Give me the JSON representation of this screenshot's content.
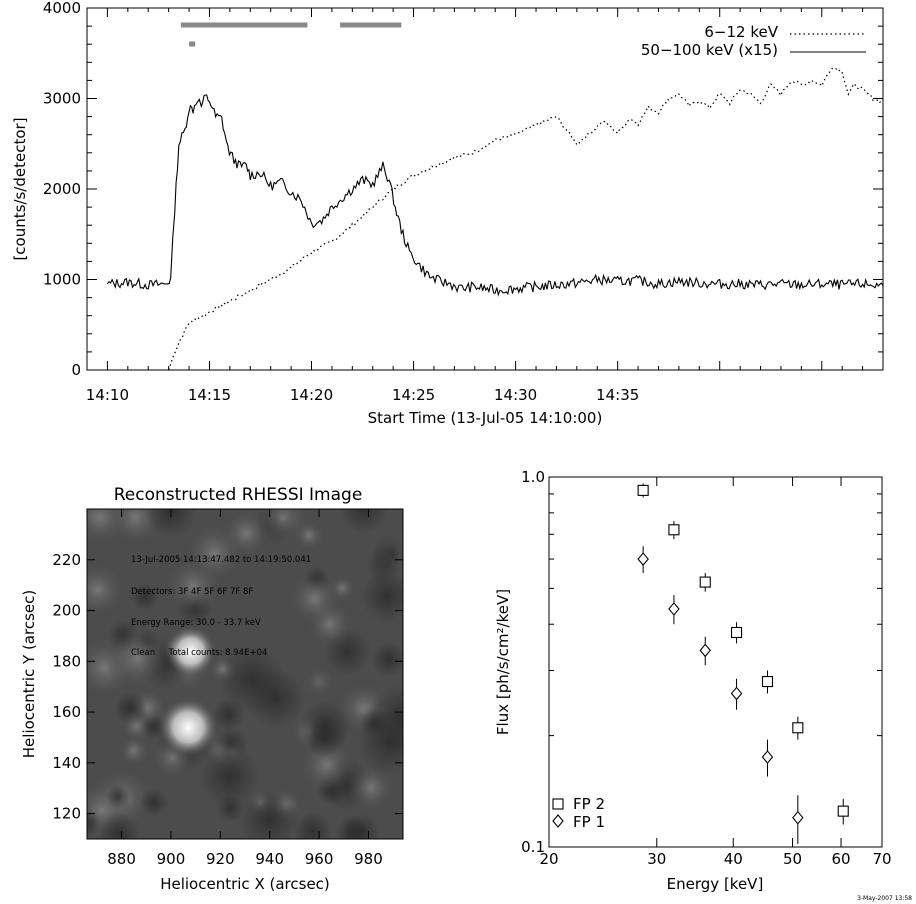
{
  "chart_data": [
    {
      "type": "line",
      "xlabel": "Start Time (13-Jul-05 14:10:00)",
      "ylabel": "[counts/s/detector]",
      "xlim": [
        -1,
        38
      ],
      "ylim": [
        0,
        4000
      ],
      "x_ticks": [
        0,
        5,
        10,
        15,
        20,
        25,
        30,
        35
      ],
      "x_tick_labels": [
        "14:10",
        "14:15",
        "14:20",
        "14:25",
        "14:30",
        "14:35"
      ],
      "x_tick_label_positions": [
        0,
        5,
        10,
        15,
        20,
        25
      ],
      "y_ticks": [
        0,
        1000,
        2000,
        3000,
        4000
      ],
      "y_tick_labels": [
        "0",
        "1000",
        "2000",
        "3000",
        "4000"
      ],
      "legend_position": "top-right",
      "series": [
        {
          "name": "6−12 keV",
          "style": "dotted",
          "x": [
            3.0,
            3.3,
            3.6,
            4.0,
            4.5,
            5.0,
            6.0,
            7.0,
            8.0,
            9.0,
            10.0,
            11.0,
            12.0,
            13.0,
            14.0,
            15.0,
            16.0,
            17.0,
            18.0,
            19.0,
            20.0,
            21.0,
            22.0,
            23.0,
            23.6,
            24.3,
            25.0,
            25.6,
            26.0,
            26.5,
            27.0,
            27.5,
            28.0,
            28.5,
            29.0,
            29.5,
            30.0,
            30.5,
            31.0,
            31.5,
            32.0,
            32.5,
            33.0,
            33.5,
            34.0,
            34.5,
            35.0,
            35.5,
            36.0,
            36.3,
            36.6,
            37.0,
            37.5,
            38.0
          ],
          "values": [
            0,
            200,
            350,
            520,
            580,
            640,
            760,
            880,
            1000,
            1130,
            1300,
            1420,
            1600,
            1800,
            2000,
            2150,
            2250,
            2350,
            2410,
            2540,
            2600,
            2710,
            2800,
            2500,
            2610,
            2750,
            2620,
            2780,
            2720,
            2900,
            2850,
            3000,
            3050,
            2920,
            2980,
            2900,
            3050,
            2950,
            3100,
            3050,
            2950,
            3150,
            3050,
            3200,
            3150,
            3200,
            3150,
            3350,
            3300,
            3050,
            3150,
            3100,
            3000,
            2950
          ]
        },
        {
          "name": "50−100 keV (x15)",
          "style": "solid",
          "x": [
            0.0,
            1.0,
            2.0,
            2.8,
            3.1,
            3.3,
            3.5,
            3.8,
            4.0,
            4.2,
            4.4,
            4.6,
            4.8,
            5.0,
            5.3,
            5.6,
            5.9,
            6.2,
            6.5,
            6.8,
            7.0,
            7.5,
            8.0,
            8.5,
            9.0,
            9.5,
            10.0,
            10.5,
            11.0,
            11.5,
            12.0,
            12.5,
            13.0,
            13.5,
            13.8,
            14.1,
            14.4,
            14.8,
            15.3,
            15.8,
            16.3,
            16.8,
            17.3,
            18.0,
            19.0,
            20.0,
            21.0,
            22.0,
            23.0,
            24.0,
            25.0,
            26.0,
            27.0,
            28.0,
            29.0,
            30.0,
            31.0,
            32.0,
            33.0,
            34.0,
            35.0,
            36.0,
            37.0,
            38.0
          ],
          "values": [
            950,
            970,
            940,
            950,
            1000,
            1800,
            2500,
            2650,
            2900,
            2880,
            3000,
            2920,
            3020,
            2980,
            2800,
            2780,
            2450,
            2320,
            2250,
            2260,
            2150,
            2180,
            2030,
            2080,
            1970,
            1880,
            1620,
            1650,
            1800,
            1900,
            2000,
            2100,
            2050,
            2250,
            2100,
            1800,
            1550,
            1300,
            1150,
            1030,
            980,
            950,
            900,
            920,
            880,
            900,
            920,
            940,
            960,
            1000,
            980,
            990,
            950,
            980,
            960,
            950,
            950,
            940,
            950,
            940,
            950,
            940,
            950,
            930
          ]
        }
      ],
      "annotation_bars_minutes": [
        [
          3.6,
          9.8
        ],
        [
          11.4,
          14.4
        ],
        [
          4.0,
          4.3
        ]
      ]
    },
    {
      "type": "heatmap",
      "title": "Reconstructed RHESSI Image",
      "xlabel": "Heliocentric X (arcsec)",
      "ylabel": "Heliocentric Y (arcsec)",
      "xlim": [
        866,
        994
      ],
      "ylim": [
        110,
        240
      ],
      "x_ticks": [
        880,
        900,
        920,
        940,
        960,
        980
      ],
      "y_ticks": [
        120,
        140,
        160,
        180,
        200,
        220
      ],
      "sources": [
        {
          "x": 908,
          "y": 184,
          "intensity": 0.75
        },
        {
          "x": 907,
          "y": 154,
          "intensity": 1.0
        },
        {
          "x": 960,
          "y": 172,
          "intensity": 0.25
        }
      ],
      "annotations": [
        "13-Jul-2005 14:13:47.482 to 14:19:50.041",
        "Detectors: 3F 4F 5F 6F 7F 8F",
        "Energy Range: 30.0 - 33.7 keV",
        "Clean     Total counts: 8.94E+04"
      ]
    },
    {
      "type": "scatter",
      "xlabel": "Energy [keV]",
      "ylabel": "Flux [ph/s/cm²/keV]",
      "x_scale": "log",
      "y_scale": "log",
      "xlim": [
        20,
        70
      ],
      "ylim": [
        0.1,
        1.0
      ],
      "x_ticks": [
        20,
        30,
        40,
        50,
        60,
        70
      ],
      "y_tick_labels": [
        "0.1",
        "1.0"
      ],
      "legend_position": "bottom-left",
      "series": [
        {
          "name": "FP 2",
          "marker": "square",
          "x": [
            28.5,
            32.0,
            36.0,
            40.5,
            45.5,
            51.0,
            60.5
          ],
          "values": [
            0.92,
            0.72,
            0.52,
            0.38,
            0.28,
            0.21,
            0.125
          ],
          "yerr": [
            0.04,
            0.04,
            0.03,
            0.025,
            0.02,
            0.015,
            0.01
          ]
        },
        {
          "name": "FP 1",
          "marker": "diamond",
          "x": [
            28.5,
            32.0,
            36.0,
            40.5,
            45.5,
            51.0
          ],
          "values": [
            0.6,
            0.44,
            0.34,
            0.26,
            0.175,
            0.12
          ],
          "yerr": [
            0.05,
            0.04,
            0.03,
            0.025,
            0.02,
            0.018
          ]
        }
      ]
    }
  ],
  "footer": {
    "stamp": "3-May-2007 13:58"
  }
}
